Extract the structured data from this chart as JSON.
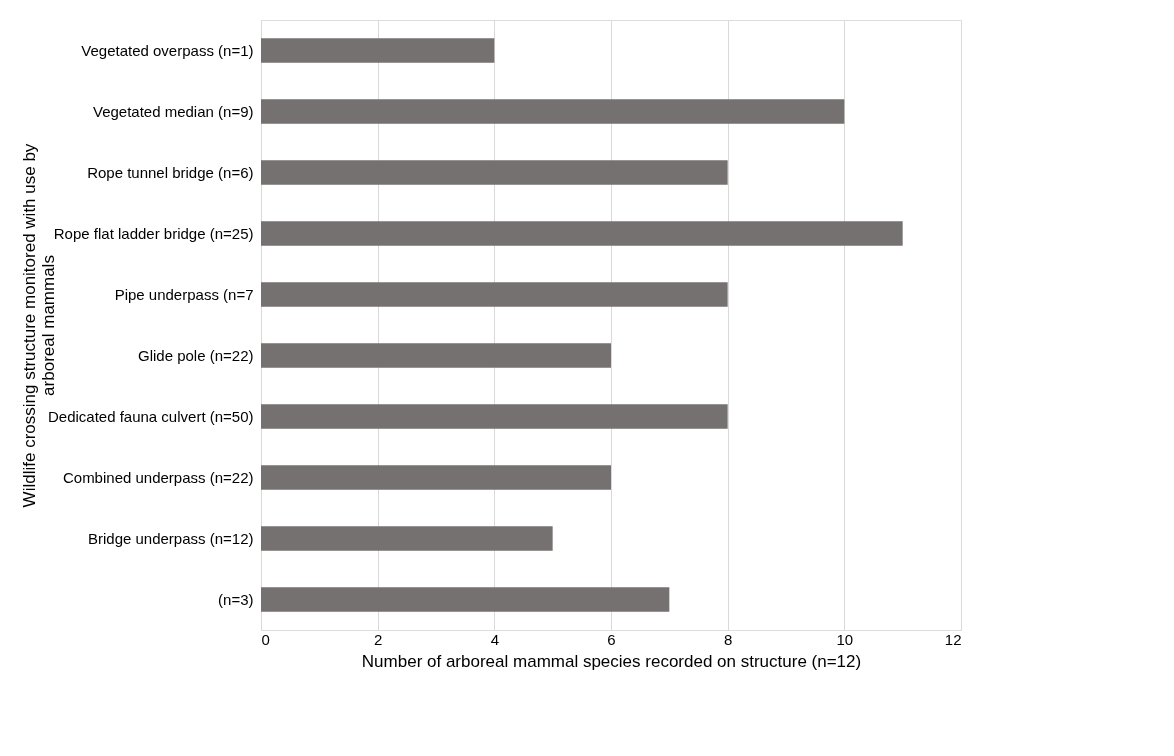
{
  "chart_data": {
    "type": "bar",
    "orientation": "horizontal",
    "categories": [
      "Vegetated overpass (n=1)",
      "Vegetated median (n=9)",
      "Rope tunnel bridge (n=6)",
      "Rope flat ladder bridge (n=25)",
      "Pipe underpass (n=7",
      "Glide pole (n=22)",
      "Dedicated fauna culvert (n=50)",
      "Combined underpass (n=22)",
      "Bridge underpass (n=12)",
      "(n=3)"
    ],
    "values": [
      4,
      10,
      8,
      11,
      8,
      6,
      8,
      6,
      5,
      7
    ],
    "color": "#767171",
    "xlabel": "Number of arboreal mammal species recorded on structure (n=12)",
    "ylabel": "Wildlife crossing structure monitored with use by arboreal mammals",
    "xlim": [
      0,
      12
    ],
    "xticks": [
      0,
      2,
      4,
      6,
      8,
      10,
      12
    ],
    "grid": "x"
  }
}
